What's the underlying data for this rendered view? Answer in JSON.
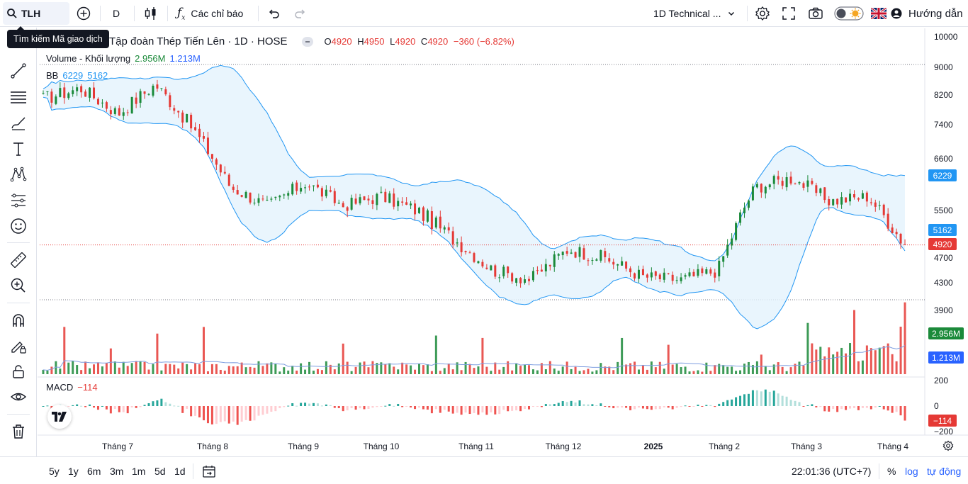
{
  "toolbar": {
    "symbol": "TLH",
    "interval": "D",
    "indicators_label": "Các chỉ báo",
    "layout_name": "1D Technical ...",
    "guide_label": "Hướng dẫn",
    "search_tooltip": "Tìm kiếm Mã giao dịch"
  },
  "legend": {
    "company": "Tập đoàn Thép Tiến Lên · 1D · HOSE",
    "ohlc": {
      "o_label": "O",
      "o": "4920",
      "h_label": "H",
      "h": "4950",
      "l_label": "L",
      "l": "4920",
      "c_label": "C",
      "c": "4920",
      "change": "−360 (−6.82%)"
    },
    "volume": {
      "name": "Volume - Khối lượng",
      "v1": "2.956M",
      "v2": "1.213M"
    },
    "bb": {
      "name": "BB",
      "upper": "6229",
      "lower": "5162"
    },
    "macd": {
      "name": "MACD",
      "value": "−114"
    }
  },
  "price_axis": {
    "labels": [
      "10000",
      "9000",
      "8200",
      "7400",
      "6600",
      "5500",
      "4700",
      "4300",
      "3900"
    ],
    "badges": [
      {
        "text": "6229",
        "color": "#2196f3"
      },
      {
        "text": "5162",
        "color": "#2196f3"
      },
      {
        "text": "4920",
        "color": "#e53935"
      },
      {
        "text": "2.956M",
        "color": "#1b8a3a"
      },
      {
        "text": "1.213M",
        "color": "#2962ff"
      },
      {
        "text": "−114",
        "color": "#e53935"
      }
    ],
    "macd_labels": [
      "200",
      "0",
      "−200"
    ]
  },
  "time_axis": [
    "Tháng 7",
    "Tháng 8",
    "Tháng 9",
    "Tháng 10",
    "Tháng 11",
    "Tháng 12",
    "2025",
    "Tháng 2",
    "Tháng 3",
    "Tháng 4"
  ],
  "ranges": [
    "5y",
    "1y",
    "6m",
    "3m",
    "1m",
    "5d",
    "1d"
  ],
  "bottom": {
    "clock": "22:01:36 (UTC+7)",
    "percent": "%",
    "log": "log",
    "auto": "tự động"
  },
  "colors": {
    "up": "#1b8a3a",
    "down": "#e53935",
    "bb": "#2196f3",
    "bb_fill": "#e3f2fd",
    "vol_ma": "#7e9ee0"
  },
  "chart_data": {
    "type": "candlestick",
    "symbol": "TLH",
    "title": "Tập đoàn Thép Tiến Lên · 1D · HOSE",
    "last": {
      "open": 4920,
      "high": 4950,
      "low": 4920,
      "close": 4920,
      "change": -360,
      "change_pct": -6.82
    },
    "price_axis_ticks": [
      10000,
      9000,
      8200,
      7400,
      6600,
      5500,
      4700,
      4300,
      3900
    ],
    "price_anchors": [
      {
        "x": "2024-06-10",
        "close": 8100
      },
      {
        "x": "2024-06-28",
        "close": 8400
      },
      {
        "x": "2024-07-05",
        "close": 7700
      },
      {
        "x": "2024-07-20",
        "close": 8500
      },
      {
        "x": "2024-08-01",
        "close": 7300
      },
      {
        "x": "2024-08-10",
        "close": 6000
      },
      {
        "x": "2024-08-25",
        "close": 5600
      },
      {
        "x": "2024-09-05",
        "close": 6100
      },
      {
        "x": "2024-09-15",
        "close": 5600
      },
      {
        "x": "2024-10-01",
        "close": 5800
      },
      {
        "x": "2024-10-15",
        "close": 5500
      },
      {
        "x": "2024-11-01",
        "close": 5000
      },
      {
        "x": "2024-11-15",
        "close": 4500
      },
      {
        "x": "2024-12-01",
        "close": 4350
      },
      {
        "x": "2024-12-10",
        "close": 4850
      },
      {
        "x": "2024-12-25",
        "close": 4700
      },
      {
        "x": "2025-01-10",
        "close": 4400
      },
      {
        "x": "2025-02-01",
        "close": 4350
      },
      {
        "x": "2025-02-20",
        "close": 4500
      },
      {
        "x": "2025-03-01",
        "close": 6000
      },
      {
        "x": "2025-03-10",
        "close": 6200
      },
      {
        "x": "2025-03-25",
        "close": 5700
      },
      {
        "x": "2025-04-05",
        "close": 5800
      },
      {
        "x": "2025-04-10",
        "close": 4920
      }
    ],
    "bollinger": {
      "upper": 6229,
      "lower": 5162
    },
    "volume": {
      "last": 2.956,
      "ma": 1.213,
      "unit": "M"
    },
    "macd": {
      "value": -114,
      "axis": [
        200,
        0,
        -200
      ]
    },
    "x_ticks": [
      "Tháng 7",
      "Tháng 8",
      "Tháng 9",
      "Tháng 10",
      "Tháng 11",
      "Tháng 12",
      "2025",
      "Tháng 2",
      "Tháng 3",
      "Tháng 4"
    ]
  }
}
